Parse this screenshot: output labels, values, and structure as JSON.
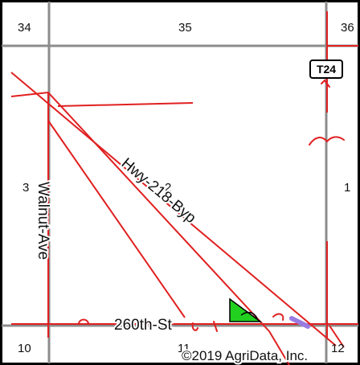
{
  "sections": {
    "s34": "34",
    "s35": "35",
    "s36": "36",
    "s3": "3",
    "s2": "2",
    "s1": "1",
    "s10": "10",
    "s11": "11",
    "s12": "12"
  },
  "roads": {
    "highway": "Hwy-218-Byp",
    "walnut": "Walnut-Ave",
    "street": "260th-St"
  },
  "shield": "T24",
  "copyright": "©2019 AgriData, Inc.",
  "colors": {
    "boundary": "#e02020",
    "grid": "#8c8c8c",
    "field": "#22d11f",
    "marker": "#9a7be0",
    "frame": "#000000"
  }
}
